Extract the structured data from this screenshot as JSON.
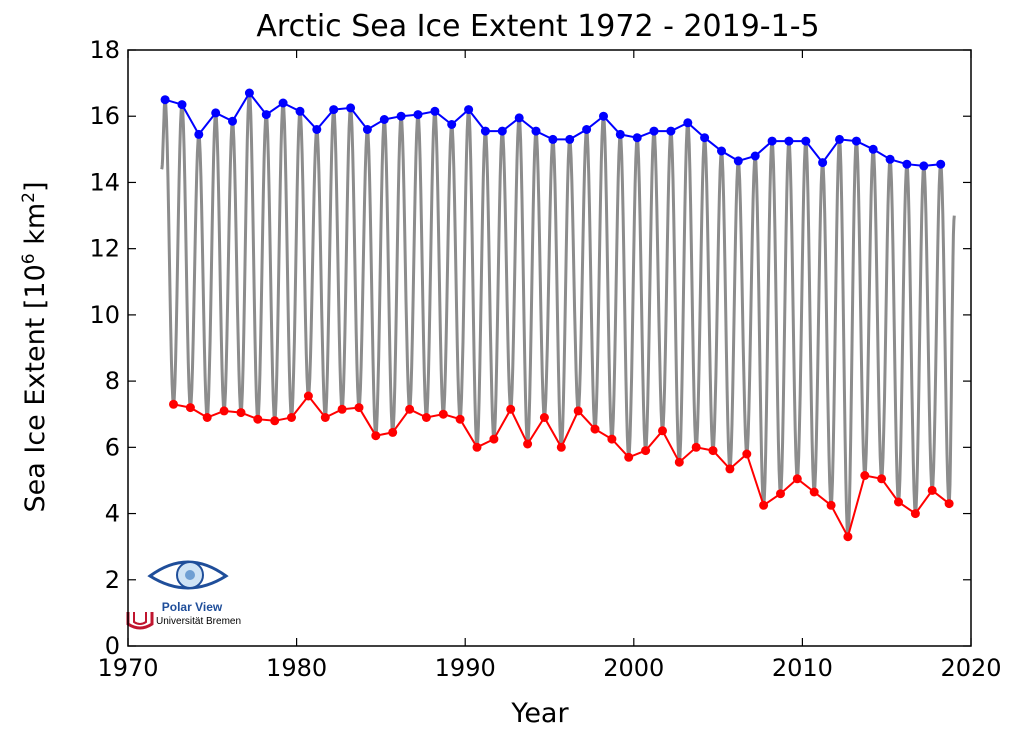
{
  "chart_data": {
    "type": "line",
    "title": "Arctic Sea Ice Extent 1972 - 2019-1-5",
    "xlabel": "Year",
    "ylabel": "Sea Ice Extent [10^6 km^2]",
    "ylabel_parts": {
      "prefix": "Sea Ice Extent [10",
      "exp1": "6",
      "mid": " km",
      "exp2": "2",
      "suffix": "]"
    },
    "xlim": [
      1970,
      2020
    ],
    "ylim": [
      0,
      18
    ],
    "x_ticks": [
      "1970",
      "1980",
      "1990",
      "2000",
      "2010",
      "2020"
    ],
    "y_ticks": [
      "0",
      "2",
      "4",
      "6",
      "8",
      "10",
      "12",
      "14",
      "16",
      "18"
    ],
    "grid": false,
    "series": [
      {
        "role": "daily",
        "color": "#8c8c8c",
        "start": {
          "x": 1972.0,
          "y": 14.4
        },
        "end": {
          "x": 2019.01,
          "y": 13.0
        }
      },
      {
        "role": "annual maximum",
        "color": "#0000ff",
        "points": [
          [
            1972.2,
            16.5
          ],
          [
            1973.2,
            16.35
          ],
          [
            1974.2,
            15.45
          ],
          [
            1975.2,
            16.1
          ],
          [
            1976.2,
            15.85
          ],
          [
            1977.2,
            16.7
          ],
          [
            1978.2,
            16.05
          ],
          [
            1979.2,
            16.4
          ],
          [
            1980.2,
            16.15
          ],
          [
            1981.2,
            15.6
          ],
          [
            1982.2,
            16.2
          ],
          [
            1983.2,
            16.25
          ],
          [
            1984.2,
            15.6
          ],
          [
            1985.2,
            15.9
          ],
          [
            1986.2,
            16.0
          ],
          [
            1987.2,
            16.05
          ],
          [
            1988.2,
            16.15
          ],
          [
            1989.2,
            15.75
          ],
          [
            1990.2,
            16.2
          ],
          [
            1991.2,
            15.55
          ],
          [
            1992.2,
            15.55
          ],
          [
            1993.2,
            15.95
          ],
          [
            1994.2,
            15.55
          ],
          [
            1995.2,
            15.3
          ],
          [
            1996.2,
            15.3
          ],
          [
            1997.2,
            15.6
          ],
          [
            1998.2,
            16.0
          ],
          [
            1999.2,
            15.45
          ],
          [
            2000.2,
            15.35
          ],
          [
            2001.2,
            15.55
          ],
          [
            2002.2,
            15.55
          ],
          [
            2003.2,
            15.8
          ],
          [
            2004.2,
            15.35
          ],
          [
            2005.2,
            14.95
          ],
          [
            2006.2,
            14.65
          ],
          [
            2007.2,
            14.8
          ],
          [
            2008.2,
            15.25
          ],
          [
            2009.2,
            15.25
          ],
          [
            2010.2,
            15.25
          ],
          [
            2011.2,
            14.6
          ],
          [
            2012.2,
            15.3
          ],
          [
            2013.2,
            15.25
          ],
          [
            2014.2,
            15.0
          ],
          [
            2015.2,
            14.7
          ],
          [
            2016.2,
            14.55
          ],
          [
            2017.2,
            14.5
          ],
          [
            2018.2,
            14.55
          ]
        ]
      },
      {
        "role": "annual minimum",
        "color": "#ff0000",
        "points": [
          [
            1972.7,
            7.3
          ],
          [
            1973.7,
            7.2
          ],
          [
            1974.7,
            6.9
          ],
          [
            1975.7,
            7.1
          ],
          [
            1976.7,
            7.05
          ],
          [
            1977.7,
            6.85
          ],
          [
            1978.7,
            6.8
          ],
          [
            1979.7,
            6.9
          ],
          [
            1980.7,
            7.55
          ],
          [
            1981.7,
            6.9
          ],
          [
            1982.7,
            7.15
          ],
          [
            1983.7,
            7.2
          ],
          [
            1984.7,
            6.35
          ],
          [
            1985.7,
            6.45
          ],
          [
            1986.7,
            7.15
          ],
          [
            1987.7,
            6.9
          ],
          [
            1988.7,
            7.0
          ],
          [
            1989.7,
            6.85
          ],
          [
            1990.7,
            6.0
          ],
          [
            1991.7,
            6.25
          ],
          [
            1992.7,
            7.15
          ],
          [
            1993.7,
            6.1
          ],
          [
            1994.7,
            6.9
          ],
          [
            1995.7,
            6.0
          ],
          [
            1996.7,
            7.1
          ],
          [
            1997.7,
            6.55
          ],
          [
            1998.7,
            6.25
          ],
          [
            1999.7,
            5.7
          ],
          [
            2000.7,
            5.9
          ],
          [
            2001.7,
            6.5
          ],
          [
            2002.7,
            5.55
          ],
          [
            2003.7,
            6.0
          ],
          [
            2004.7,
            5.9
          ],
          [
            2005.7,
            5.35
          ],
          [
            2006.7,
            5.8
          ],
          [
            2007.7,
            4.25
          ],
          [
            2008.7,
            4.6
          ],
          [
            2009.7,
            5.05
          ],
          [
            2010.7,
            4.65
          ],
          [
            2011.7,
            4.25
          ],
          [
            2012.7,
            3.3
          ],
          [
            2013.7,
            5.15
          ],
          [
            2014.7,
            5.05
          ],
          [
            2015.7,
            4.35
          ],
          [
            2016.7,
            4.0
          ],
          [
            2017.7,
            4.7
          ],
          [
            2018.7,
            4.3
          ]
        ]
      }
    ]
  },
  "logo": {
    "line1": "Polar View",
    "line2": "Universität Bremen"
  }
}
